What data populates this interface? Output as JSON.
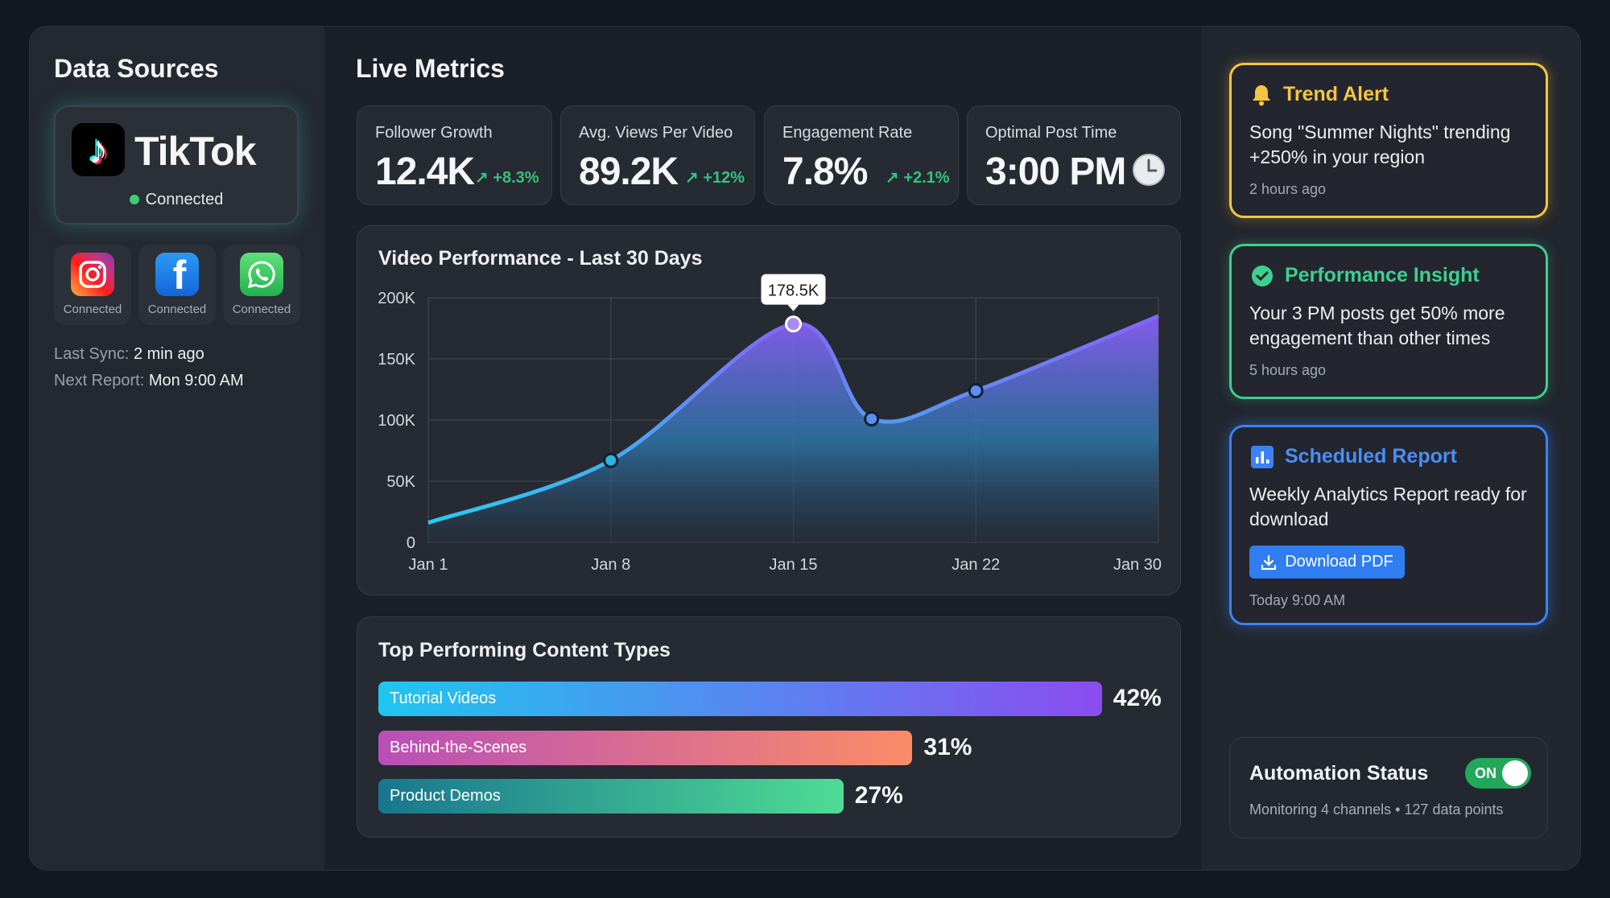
{
  "sidebar": {
    "title": "Data Sources",
    "primary": {
      "name": "TikTok",
      "status": "Connected",
      "icon": "tiktok-logo"
    },
    "others": [
      {
        "icon": "instagram-icon",
        "status": "Connected"
      },
      {
        "icon": "facebook-icon",
        "status": "Connected"
      },
      {
        "icon": "whatsapp-icon",
        "status": "Connected"
      }
    ],
    "last_sync_label": "Last Sync:",
    "last_sync_value": "2 min ago",
    "next_report_label": "Next Report:",
    "next_report_value": "Mon 9:00 AM"
  },
  "main": {
    "title": "Live Metrics",
    "metrics": [
      {
        "label": "Follower Growth",
        "value": "12.4K",
        "change": "↗ +8.3%"
      },
      {
        "label": "Avg. Views Per Video",
        "value": "89.2K",
        "change": "↗ +12%"
      },
      {
        "label": "Engagement Rate",
        "value": "7.8%",
        "change": "↗ +2.1%"
      },
      {
        "label": "Optimal Post Time",
        "value": "3:00 PM",
        "icon": "clock-icon"
      }
    ]
  },
  "chart_data": [
    {
      "type": "area",
      "title": "Video Performance - Last 30 Days",
      "x_ticks": [
        "Jan 1",
        "Jan 8",
        "Jan 15",
        "Jan 22",
        "Jan 30"
      ],
      "y_ticks": [
        "0",
        "50K",
        "100K",
        "150K",
        "200K"
      ],
      "ylim": [
        0,
        200000
      ],
      "grid": true,
      "points": [
        {
          "x": "Jan 1",
          "y": 16000,
          "marker": false
        },
        {
          "x": "Jan 8",
          "y": 67000,
          "marker": true
        },
        {
          "x": "Jan 15",
          "y": 178500,
          "marker": true,
          "label": "178.5K"
        },
        {
          "x": "Jan 18",
          "y": 101000,
          "marker": true
        },
        {
          "x": "Jan 22",
          "y": 124000,
          "marker": true
        },
        {
          "x": "Jan 30",
          "y": 185000,
          "marker": false
        }
      ],
      "colors": {
        "low": "#22d3ee",
        "high": "#8b5cf6"
      }
    },
    {
      "type": "bar",
      "orientation": "horizontal",
      "title": "Top Performing Content Types",
      "categories": [
        "Tutorial Videos",
        "Behind-the-Scenes",
        "Product Demos"
      ],
      "values": [
        42,
        31,
        27
      ],
      "value_labels": [
        "42%",
        "31%",
        "27%"
      ],
      "gradients": [
        [
          "#1fc6f0",
          "#8b4cf0"
        ],
        [
          "#b84fb8",
          "#fb8c68"
        ],
        [
          "#18768f",
          "#4fdc94"
        ]
      ]
    }
  ],
  "right": {
    "trend": {
      "title": "Trend Alert",
      "body": "Song \"Summer Nights\" trending +250% in your region",
      "time": "2 hours ago",
      "color": "#f5c542"
    },
    "insight": {
      "title": "Performance Insight",
      "body": "Your 3 PM posts get 50% more engagement than other times",
      "time": "5 hours ago",
      "color": "#3ecf8e"
    },
    "report": {
      "title": "Scheduled Report",
      "body": "Weekly Analytics Report ready for download",
      "button": "Download PDF",
      "time": "Today 9:00 AM",
      "color": "#3b82f6"
    },
    "automation": {
      "title": "Automation Status",
      "toggle": "ON",
      "toggle_on": true,
      "detail": "Monitoring 4 channels • 127 data points"
    }
  }
}
